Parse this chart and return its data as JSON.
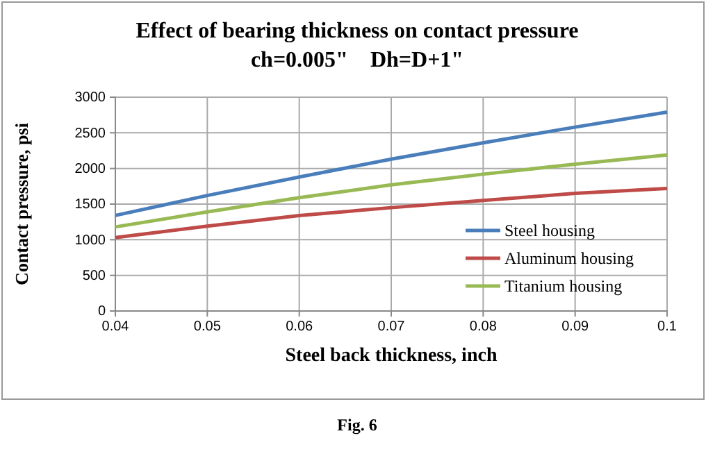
{
  "chart_data": {
    "type": "line",
    "title": "Effect of bearing thickness on contact pressure",
    "subtitle": "ch=0.005\"    Dh=D+1\"",
    "xlabel": "Steel back thickness, inch",
    "ylabel": "Contact pressure, psi",
    "annotations": [
      "Fig. 6"
    ],
    "x": [
      0.04,
      0.05,
      0.06,
      0.07,
      0.08,
      0.09,
      0.1
    ],
    "series": [
      {
        "name": "Steel housing",
        "color": "#4a7ebb",
        "values": [
          1340,
          1620,
          1880,
          2130,
          2360,
          2580,
          2790
        ]
      },
      {
        "name": "Aluminum housing",
        "color": "#be4b48",
        "values": [
          1030,
          1190,
          1340,
          1450,
          1550,
          1650,
          1720
        ]
      },
      {
        "name": "Titanium housing",
        "color": "#98b954",
        "values": [
          1180,
          1390,
          1590,
          1770,
          1920,
          2060,
          2190
        ]
      }
    ],
    "xlim": [
      0.04,
      0.1
    ],
    "xticks": [
      {
        "value": 0.04,
        "label": "0.04"
      },
      {
        "value": 0.05,
        "label": "0.05"
      },
      {
        "value": 0.06,
        "label": "0.06"
      },
      {
        "value": 0.07,
        "label": "0.07"
      },
      {
        "value": 0.08,
        "label": "0.08"
      },
      {
        "value": 0.09,
        "label": "0.09"
      },
      {
        "value": 0.1,
        "label": "0.1"
      }
    ],
    "ylim": [
      0,
      3000
    ],
    "yticks": [
      0,
      500,
      1000,
      1500,
      2000,
      2500,
      3000
    ],
    "grid": true,
    "legend": "bottom right",
    "marker": "none",
    "line_style": "solid"
  }
}
